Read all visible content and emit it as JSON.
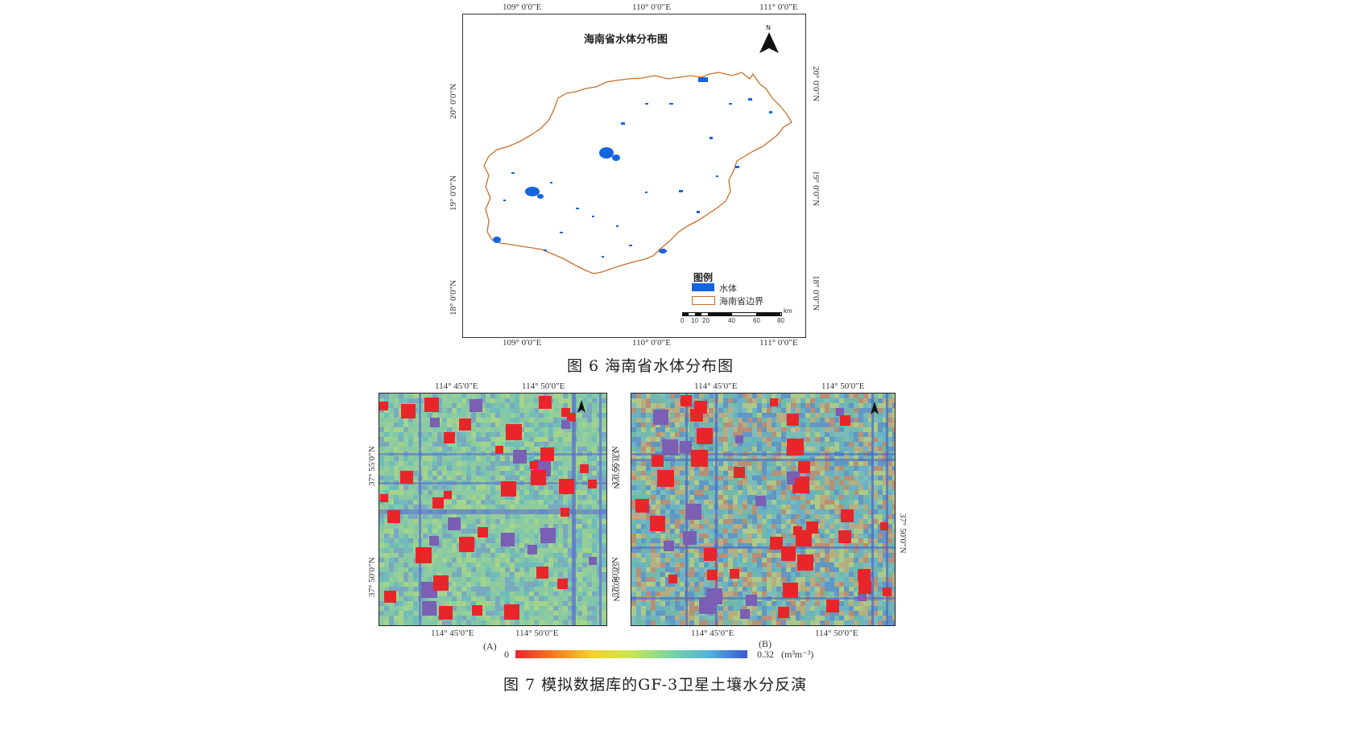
{
  "fig6": {
    "map_title": "海南省水体分布图",
    "north_label": "N",
    "top_ticks": [
      "109° 0′0″E",
      "110° 0′0″E",
      "111° 0′0″E"
    ],
    "bottom_ticks": [
      "109° 0′0″E",
      "110° 0′0″E",
      "111° 0′0″E"
    ],
    "left_ticks": [
      "20° 0′0″N",
      "19° 0′0″N",
      "18° 0′0″N"
    ],
    "right_ticks": [
      "20° 0′0″N",
      "19° 0′0″N",
      "18° 0′0″N"
    ],
    "legend_title": "图例",
    "legend_items": [
      {
        "label": "水体",
        "color": "#1565e0"
      },
      {
        "label": "海南省边界",
        "color": "#c8702c"
      }
    ],
    "scale_labels": [
      "0",
      "10",
      "20",
      "40",
      "60",
      "80"
    ],
    "scale_unit": "km",
    "caption": "图 6 海南省水体分布图"
  },
  "fig7": {
    "panelA": {
      "label": "(A)",
      "top_ticks": [
        "114° 45′0″E",
        "114° 50′0″E"
      ],
      "bottom_ticks": [
        "114° 45′0″E",
        "114° 50′0″E"
      ],
      "left_ticks": [
        "37° 55′0″N",
        "37° 50′0″N"
      ],
      "right_ticks": [
        "37° 55′0″N",
        "37° 50′0″N"
      ]
    },
    "panelB": {
      "label": "(B)",
      "top_ticks": [
        "114° 45′0″E",
        "114° 50′0″E"
      ],
      "bottom_ticks": [
        "114° 45′0″E",
        "114° 50′0″E"
      ],
      "left_ticks": [
        "37° 55′0″N",
        "37° 50′0″N"
      ],
      "right_ticks": [
        "37° 50′0″N"
      ]
    },
    "colorbar_min": "0",
    "colorbar_max": "0.32",
    "colorbar_unit": "(m³m⁻³)",
    "colorbar_colors": [
      "#e8262a",
      "#f47d22",
      "#f4d22c",
      "#c8e650",
      "#7ad4a0",
      "#54b4d8",
      "#3b58d4"
    ],
    "caption": "图 7 模拟数据库的GF-3卫星土壤水分反演"
  },
  "colors": {
    "water": "#1565e0",
    "boundary": "#c8702c",
    "field_red": "#e8262a",
    "field_purple": "#7a5fb4",
    "bg_green": "#8cc8a0"
  }
}
